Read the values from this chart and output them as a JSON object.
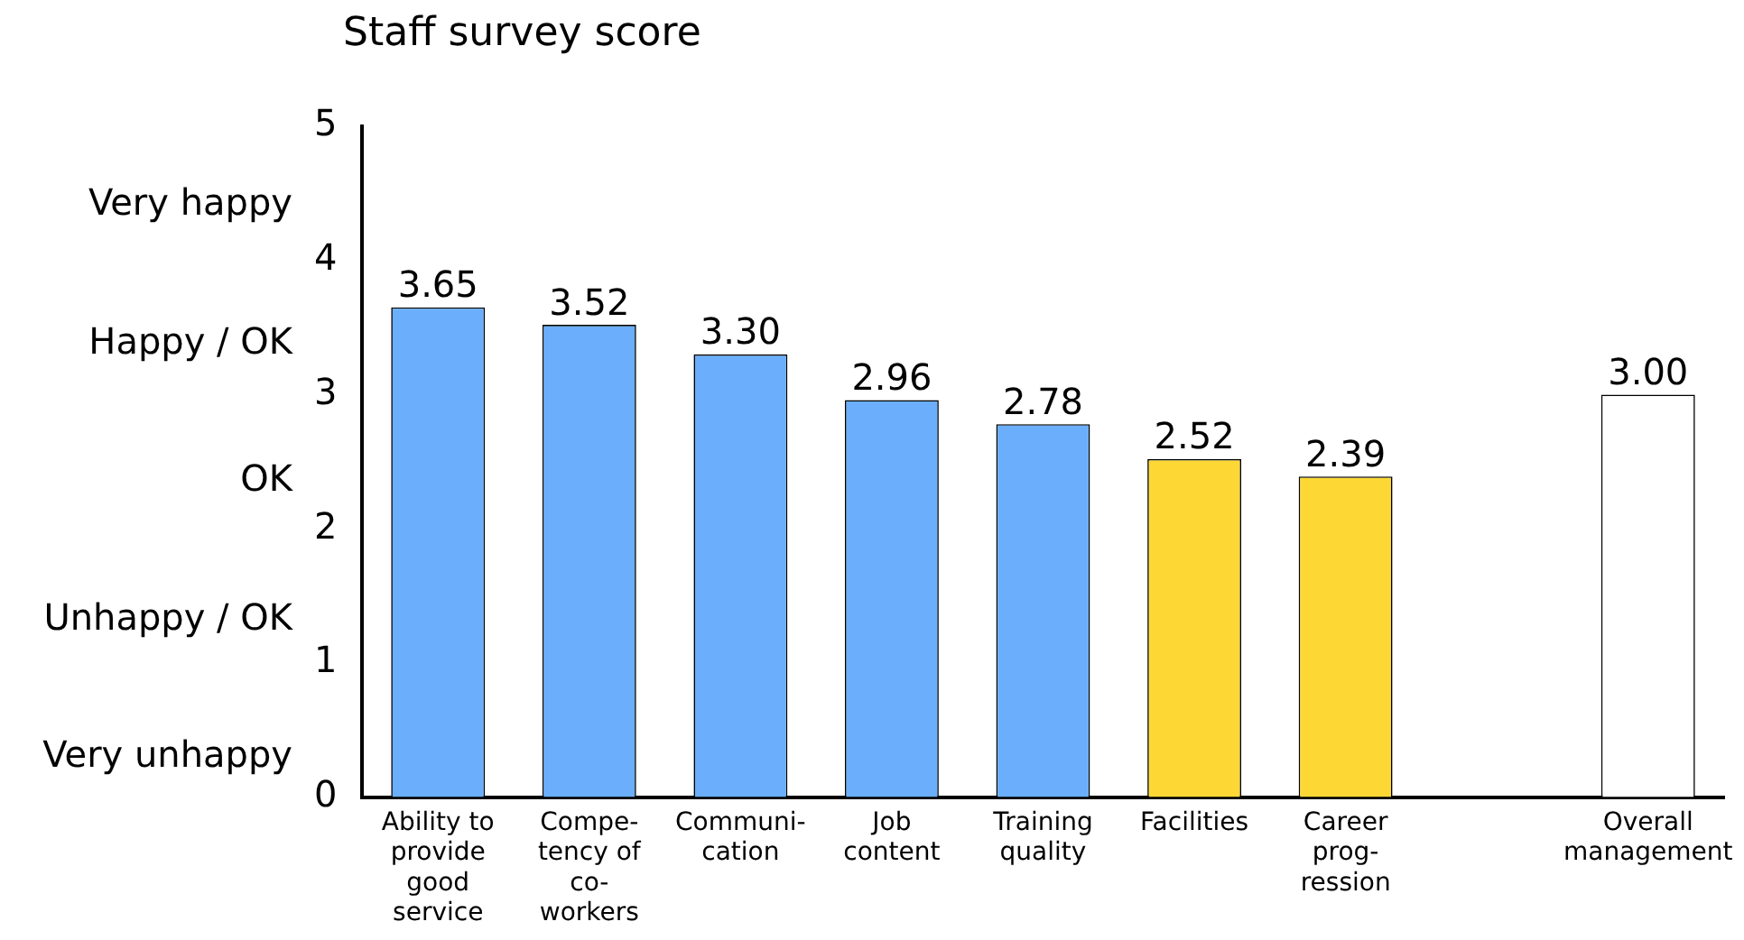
{
  "chart_data": {
    "type": "bar",
    "title": "Staff survey score",
    "categories": [
      "Ability to\nprovide\ngood\nservice",
      "Compe-\ntency of\nco-\nworkers",
      "Communi-\ncation",
      "Job\ncontent",
      "Training\nquality",
      "Facilities",
      "Career\nprog-\nression",
      null,
      "Overall\nmanagement"
    ],
    "values": [
      3.65,
      3.52,
      3.3,
      2.96,
      2.78,
      2.52,
      2.39,
      0,
      3.0
    ],
    "colors": [
      "#6aaefc",
      "#6aaefc",
      "#6aaefc",
      "#6aaefc",
      "#6aaefc",
      "#fdd835",
      "#fdd835",
      "#000000",
      "#ffffff"
    ],
    "value_labels": [
      "3.65",
      "3.52",
      "3.30",
      "2.96",
      "2.78",
      "2.52",
      "2.39",
      null,
      "3.00"
    ],
    "ylim": [
      0,
      5
    ],
    "yticks": [
      0,
      1,
      2,
      3,
      4,
      5
    ],
    "annotations": [
      "Very happy",
      "Happy / OK",
      "OK",
      "Unhappy / OK",
      "Very unhappy"
    ],
    "grid": false,
    "legend": false
  }
}
